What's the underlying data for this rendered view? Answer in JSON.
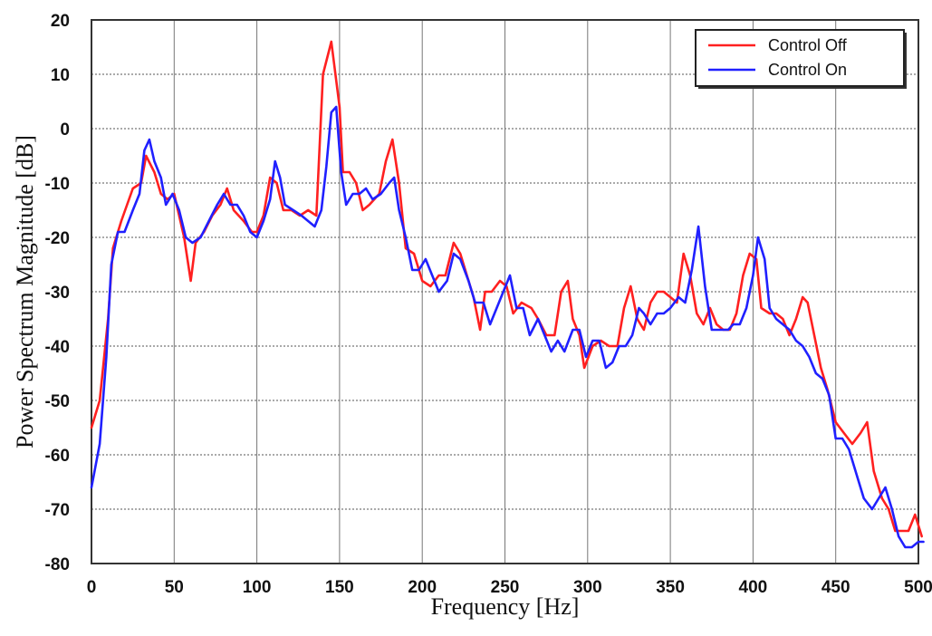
{
  "chart_data": {
    "type": "line",
    "title": "",
    "xlabel": "Frequency [Hz]",
    "ylabel": "Power Spectrum Magnitude [dB]",
    "xlim": [
      0,
      500
    ],
    "ylim": [
      -80,
      20
    ],
    "xticks": [
      0,
      50,
      100,
      150,
      200,
      250,
      300,
      350,
      400,
      450,
      500
    ],
    "yticks": [
      -80,
      -70,
      -60,
      -50,
      -40,
      -30,
      -20,
      -10,
      0,
      10,
      20
    ],
    "grid": true,
    "legend_position": "top-right",
    "series": [
      {
        "name": "Control Off",
        "color": "#ff2020",
        "points": [
          [
            0,
            -55
          ],
          [
            5,
            -50
          ],
          [
            10,
            -35
          ],
          [
            13,
            -22
          ],
          [
            18,
            -17
          ],
          [
            25,
            -11
          ],
          [
            30,
            -10
          ],
          [
            33,
            -5
          ],
          [
            38,
            -8
          ],
          [
            42,
            -12
          ],
          [
            46,
            -13
          ],
          [
            50,
            -12
          ],
          [
            56,
            -20
          ],
          [
            60,
            -28
          ],
          [
            63,
            -21
          ],
          [
            68,
            -19
          ],
          [
            73,
            -16
          ],
          [
            78,
            -14
          ],
          [
            82,
            -11
          ],
          [
            86,
            -15
          ],
          [
            92,
            -17
          ],
          [
            97,
            -19
          ],
          [
            100,
            -19
          ],
          [
            104,
            -16
          ],
          [
            108,
            -9
          ],
          [
            112,
            -10
          ],
          [
            116,
            -15
          ],
          [
            121,
            -15
          ],
          [
            126,
            -16
          ],
          [
            131,
            -15
          ],
          [
            136,
            -16
          ],
          [
            140,
            10
          ],
          [
            145,
            16
          ],
          [
            150,
            4
          ],
          [
            152,
            -8
          ],
          [
            156,
            -8
          ],
          [
            160,
            -10
          ],
          [
            164,
            -15
          ],
          [
            168,
            -14
          ],
          [
            174,
            -12
          ],
          [
            178,
            -6
          ],
          [
            182,
            -2
          ],
          [
            186,
            -10
          ],
          [
            190,
            -22
          ],
          [
            195,
            -23
          ],
          [
            200,
            -28
          ],
          [
            205,
            -29
          ],
          [
            210,
            -27
          ],
          [
            214,
            -27
          ],
          [
            219,
            -21
          ],
          [
            223,
            -23
          ],
          [
            227,
            -27
          ],
          [
            231,
            -31
          ],
          [
            235,
            -37
          ],
          [
            238,
            -30
          ],
          [
            242,
            -30
          ],
          [
            247,
            -28
          ],
          [
            251,
            -29
          ],
          [
            255,
            -34
          ],
          [
            260,
            -32
          ],
          [
            266,
            -33
          ],
          [
            270,
            -35
          ],
          [
            275,
            -38
          ],
          [
            280,
            -38
          ],
          [
            284,
            -30
          ],
          [
            288,
            -28
          ],
          [
            291,
            -35
          ],
          [
            295,
            -38
          ],
          [
            298,
            -44
          ],
          [
            303,
            -40
          ],
          [
            308,
            -39
          ],
          [
            313,
            -40
          ],
          [
            318,
            -40
          ],
          [
            322,
            -33
          ],
          [
            326,
            -29
          ],
          [
            330,
            -35
          ],
          [
            334,
            -37
          ],
          [
            338,
            -32
          ],
          [
            342,
            -30
          ],
          [
            346,
            -30
          ],
          [
            350,
            -31
          ],
          [
            354,
            -32
          ],
          [
            358,
            -23
          ],
          [
            362,
            -27
          ],
          [
            366,
            -34
          ],
          [
            370,
            -36
          ],
          [
            374,
            -33
          ],
          [
            378,
            -36
          ],
          [
            382,
            -37
          ],
          [
            386,
            -37
          ],
          [
            390,
            -34
          ],
          [
            394,
            -27
          ],
          [
            398,
            -23
          ],
          [
            402,
            -24
          ],
          [
            405,
            -33
          ],
          [
            410,
            -34
          ],
          [
            414,
            -34
          ],
          [
            418,
            -35
          ],
          [
            422,
            -38
          ],
          [
            426,
            -35
          ],
          [
            430,
            -31
          ],
          [
            433,
            -32
          ],
          [
            437,
            -38
          ],
          [
            441,
            -44
          ],
          [
            445,
            -48
          ],
          [
            450,
            -54
          ],
          [
            455,
            -56
          ],
          [
            460,
            -58
          ],
          [
            465,
            -56
          ],
          [
            469,
            -54
          ],
          [
            473,
            -63
          ],
          [
            478,
            -68
          ],
          [
            482,
            -70
          ],
          [
            486,
            -74
          ],
          [
            490,
            -74
          ],
          [
            494,
            -74
          ],
          [
            498,
            -71
          ],
          [
            502,
            -75
          ]
        ]
      },
      {
        "name": "Control On",
        "color": "#2020ff",
        "points": [
          [
            0,
            -66
          ],
          [
            5,
            -58
          ],
          [
            9,
            -42
          ],
          [
            12,
            -25
          ],
          [
            16,
            -19
          ],
          [
            20,
            -19
          ],
          [
            25,
            -15
          ],
          [
            29,
            -12
          ],
          [
            32,
            -4
          ],
          [
            35,
            -2
          ],
          [
            38,
            -6
          ],
          [
            42,
            -9
          ],
          [
            45,
            -14
          ],
          [
            49,
            -12
          ],
          [
            53,
            -15
          ],
          [
            57,
            -20
          ],
          [
            61,
            -21
          ],
          [
            66,
            -20
          ],
          [
            71,
            -17
          ],
          [
            76,
            -14
          ],
          [
            80,
            -12
          ],
          [
            84,
            -14
          ],
          [
            88,
            -14
          ],
          [
            92,
            -16
          ],
          [
            96,
            -19
          ],
          [
            100,
            -20
          ],
          [
            104,
            -17
          ],
          [
            108,
            -13
          ],
          [
            111,
            -6
          ],
          [
            114,
            -9
          ],
          [
            117,
            -14
          ],
          [
            122,
            -15
          ],
          [
            127,
            -16
          ],
          [
            131,
            -17
          ],
          [
            135,
            -18
          ],
          [
            139,
            -15
          ],
          [
            142,
            -7
          ],
          [
            145,
            3
          ],
          [
            148,
            4
          ],
          [
            151,
            -8
          ],
          [
            154,
            -14
          ],
          [
            158,
            -12
          ],
          [
            162,
            -12
          ],
          [
            166,
            -11
          ],
          [
            170,
            -13
          ],
          [
            175,
            -12
          ],
          [
            180,
            -10
          ],
          [
            183,
            -9
          ],
          [
            186,
            -15
          ],
          [
            190,
            -20
          ],
          [
            194,
            -26
          ],
          [
            198,
            -26
          ],
          [
            202,
            -24
          ],
          [
            206,
            -27
          ],
          [
            210,
            -30
          ],
          [
            215,
            -28
          ],
          [
            219,
            -23
          ],
          [
            223,
            -24
          ],
          [
            228,
            -28
          ],
          [
            232,
            -32
          ],
          [
            237,
            -32
          ],
          [
            241,
            -36
          ],
          [
            245,
            -33
          ],
          [
            249,
            -30
          ],
          [
            253,
            -27
          ],
          [
            257,
            -33
          ],
          [
            261,
            -33
          ],
          [
            265,
            -38
          ],
          [
            270,
            -35
          ],
          [
            274,
            -38
          ],
          [
            278,
            -41
          ],
          [
            282,
            -39
          ],
          [
            286,
            -41
          ],
          [
            291,
            -37
          ],
          [
            295,
            -37
          ],
          [
            299,
            -42
          ],
          [
            303,
            -39
          ],
          [
            307,
            -39
          ],
          [
            311,
            -44
          ],
          [
            315,
            -43
          ],
          [
            319,
            -40
          ],
          [
            323,
            -40
          ],
          [
            327,
            -38
          ],
          [
            331,
            -33
          ],
          [
            334,
            -34
          ],
          [
            338,
            -36
          ],
          [
            342,
            -34
          ],
          [
            346,
            -34
          ],
          [
            350,
            -33
          ],
          [
            355,
            -31
          ],
          [
            359,
            -32
          ],
          [
            363,
            -26
          ],
          [
            367,
            -18
          ],
          [
            371,
            -29
          ],
          [
            375,
            -37
          ],
          [
            380,
            -37
          ],
          [
            385,
            -37
          ],
          [
            388,
            -36
          ],
          [
            392,
            -36
          ],
          [
            396,
            -33
          ],
          [
            400,
            -27
          ],
          [
            403,
            -20
          ],
          [
            407,
            -24
          ],
          [
            410,
            -33
          ],
          [
            414,
            -35
          ],
          [
            418,
            -36
          ],
          [
            422,
            -37
          ],
          [
            426,
            -39
          ],
          [
            430,
            -40
          ],
          [
            434,
            -42
          ],
          [
            438,
            -45
          ],
          [
            442,
            -46
          ],
          [
            446,
            -49
          ],
          [
            450,
            -57
          ],
          [
            454,
            -57
          ],
          [
            458,
            -59
          ],
          [
            463,
            -64
          ],
          [
            467,
            -68
          ],
          [
            472,
            -70
          ],
          [
            476,
            -68
          ],
          [
            480,
            -66
          ],
          [
            484,
            -70
          ],
          [
            488,
            -75
          ],
          [
            492,
            -77
          ],
          [
            496,
            -77
          ],
          [
            500,
            -76
          ],
          [
            503,
            -76
          ]
        ]
      }
    ]
  }
}
